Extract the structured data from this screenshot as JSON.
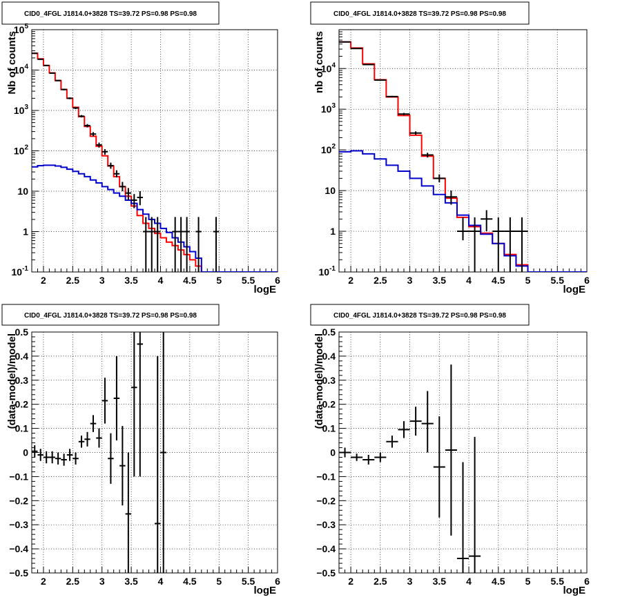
{
  "chart_data": [
    {
      "type": "line",
      "title": "CID0_4FGL J1814.0+3828 TS=39.72 PS=0.98 PS=0.98",
      "xlabel": "logE",
      "ylabel": "Nb of counts",
      "yscale": "log",
      "xlim": [
        1.8,
        6.0
      ],
      "ylim": [
        0.1,
        100000
      ],
      "grid": true,
      "xticks": [
        "2",
        "2.5",
        "3",
        "3.5",
        "4",
        "4.5",
        "5",
        "5.5",
        "6"
      ],
      "yticks": [
        {
          "value": 0.1,
          "base": "10",
          "exp": "-1"
        },
        {
          "value": 1,
          "label": "1"
        },
        {
          "value": 10,
          "label": "10"
        },
        {
          "value": 100,
          "base": "10",
          "exp": "2"
        },
        {
          "value": 1000,
          "base": "10",
          "exp": "3"
        },
        {
          "value": 10000,
          "base": "10",
          "exp": "4"
        },
        {
          "value": 100000,
          "base": "10",
          "exp": "5"
        }
      ],
      "binEdges": [
        1.8,
        1.9,
        2.0,
        2.1,
        2.2,
        2.3,
        2.4,
        2.5,
        2.6,
        2.7,
        2.8,
        2.9,
        3.0,
        3.1,
        3.2,
        3.3,
        3.4,
        3.5,
        3.6,
        3.7,
        3.8,
        3.9,
        4.0,
        4.1,
        4.2,
        4.3,
        4.4,
        4.5,
        4.6,
        4.7,
        4.8,
        4.9,
        5.0,
        5.1,
        5.2,
        5.3,
        5.4,
        5.5,
        5.6,
        5.7,
        5.8,
        5.9,
        6.0
      ],
      "series": [
        {
          "color": "#ff0000",
          "kind": "step",
          "values": [
            26000,
            19000,
            13000,
            8500,
            5500,
            3300,
            2000,
            1200,
            700,
            400,
            230,
            130,
            75,
            42,
            23,
            13,
            7.5,
            4.3,
            2.5,
            1.6,
            1.2,
            0.9,
            0.7,
            0.55,
            0.45,
            0.35,
            0.27,
            0.2,
            0.14,
            0.1,
            0.1,
            0.1,
            0.1,
            0.1,
            0.1,
            0.1,
            0.1,
            0.1,
            0.1,
            0.1,
            0.1,
            0.1
          ]
        },
        {
          "color": "#0000cc",
          "kind": "step",
          "values": [
            40,
            43,
            44,
            44,
            42,
            39,
            35,
            31,
            27,
            23,
            19,
            16,
            13,
            11,
            9,
            7.5,
            6,
            5,
            3.5,
            2.7,
            2,
            1.6,
            1.2,
            0.95,
            0.7,
            0.55,
            0.42,
            0.32,
            0.22,
            0.1,
            0.1,
            0.1,
            0.1,
            0.1,
            0.1,
            0.1,
            0.1,
            0.1,
            0.1,
            0.1,
            0.1,
            0.1
          ]
        }
      ],
      "points": [
        {
          "x": 1.85,
          "y": 26000,
          "lo": 25600,
          "hi": 26400
        },
        {
          "x": 1.95,
          "y": 18500,
          "lo": 18150,
          "hi": 18850
        },
        {
          "x": 2.05,
          "y": 13000,
          "lo": 12700,
          "hi": 13300
        },
        {
          "x": 2.15,
          "y": 8400,
          "lo": 8150,
          "hi": 8650
        },
        {
          "x": 2.25,
          "y": 5500,
          "lo": 5300,
          "hi": 5700
        },
        {
          "x": 2.35,
          "y": 3300,
          "lo": 3150,
          "hi": 3450
        },
        {
          "x": 2.45,
          "y": 2000,
          "lo": 1900,
          "hi": 2100
        },
        {
          "x": 2.55,
          "y": 1150,
          "lo": 1080,
          "hi": 1220
        },
        {
          "x": 2.65,
          "y": 720,
          "lo": 670,
          "hi": 770
        },
        {
          "x": 2.75,
          "y": 420,
          "lo": 380,
          "hi": 460
        },
        {
          "x": 2.85,
          "y": 260,
          "lo": 230,
          "hi": 290
        },
        {
          "x": 2.95,
          "y": 140,
          "lo": 120,
          "hi": 160
        },
        {
          "x": 3.05,
          "y": 95,
          "lo": 80,
          "hi": 110
        },
        {
          "x": 3.15,
          "y": 43,
          "lo": 36,
          "hi": 51
        },
        {
          "x": 3.25,
          "y": 27,
          "lo": 22,
          "hi": 33
        },
        {
          "x": 3.35,
          "y": 13,
          "lo": 10,
          "hi": 17
        },
        {
          "x": 3.45,
          "y": 9,
          "lo": 6,
          "hi": 12
        },
        {
          "x": 3.55,
          "y": 6,
          "lo": 3.8,
          "hi": 8.5
        },
        {
          "x": 3.65,
          "y": 7,
          "lo": 4.5,
          "hi": 10
        },
        {
          "x": 3.75,
          "y": 1,
          "lo": 0.1,
          "hi": 2.3
        },
        {
          "x": 3.85,
          "y": 1,
          "lo": 0.1,
          "hi": 2.3
        },
        {
          "x": 3.95,
          "y": 1,
          "lo": 0.1,
          "hi": 2.3
        },
        {
          "x": 4.25,
          "y": 1,
          "lo": 0.1,
          "hi": 2.3
        },
        {
          "x": 4.35,
          "y": 1,
          "lo": 0.1,
          "hi": 2.3
        },
        {
          "x": 4.45,
          "y": 1,
          "lo": 0.1,
          "hi": 2.3
        },
        {
          "x": 4.65,
          "y": 1,
          "lo": 0.1,
          "hi": 2.3
        },
        {
          "x": 4.95,
          "y": 1,
          "lo": 0.1,
          "hi": 2.3
        }
      ]
    },
    {
      "type": "line",
      "title": "CID0_4FGL J1814.0+3828 TS=39.72 PS=0.98 PS=0.98",
      "xlabel": "logE",
      "ylabel": "nb of counts",
      "yscale": "log",
      "xlim": [
        1.8,
        6.0
      ],
      "ylim": [
        0.1,
        90000
      ],
      "grid": true,
      "xticks": [
        "2",
        "2.5",
        "3",
        "3.5",
        "4",
        "4.5",
        "5",
        "5.5",
        "6"
      ],
      "yticks": [
        {
          "value": 0.1,
          "base": "10",
          "exp": "-1"
        },
        {
          "value": 1,
          "label": "1"
        },
        {
          "value": 10,
          "label": "10"
        },
        {
          "value": 100,
          "base": "10",
          "exp": "2"
        },
        {
          "value": 1000,
          "base": "10",
          "exp": "3"
        },
        {
          "value": 10000,
          "base": "10",
          "exp": "4"
        }
      ],
      "binEdges": [
        1.8,
        2.0,
        2.2,
        2.4,
        2.6,
        2.8,
        3.0,
        3.2,
        3.4,
        3.6,
        3.8,
        4.0,
        4.2,
        4.4,
        4.6,
        4.8,
        5.0,
        5.2,
        5.4,
        5.6,
        5.8,
        6.0
      ],
      "series": [
        {
          "color": "#ff0000",
          "kind": "step",
          "values": [
            45000,
            32000,
            13000,
            5300,
            2000,
            700,
            230,
            70,
            20,
            6.5,
            2.2,
            1.3,
            0.9,
            0.5,
            0.27,
            0.15,
            0.1,
            0.1,
            0.1,
            0.1,
            0.1
          ]
        },
        {
          "color": "#0000cc",
          "kind": "step",
          "values": [
            90,
            95,
            80,
            60,
            42,
            30,
            20,
            13,
            8,
            5,
            2.5,
            1.4,
            0.85,
            0.5,
            0.25,
            0.14,
            0.1,
            0.1,
            0.1,
            0.1,
            0.1
          ]
        }
      ],
      "points": [
        {
          "x": 1.9,
          "y": 45000,
          "lo": 44500,
          "hi": 45500
        },
        {
          "x": 2.1,
          "y": 31000,
          "lo": 30600,
          "hi": 31400
        },
        {
          "x": 2.3,
          "y": 12500,
          "lo": 12300,
          "hi": 12700
        },
        {
          "x": 2.5,
          "y": 5200,
          "lo": 5050,
          "hi": 5350
        },
        {
          "x": 2.7,
          "y": 2050,
          "lo": 1960,
          "hi": 2140
        },
        {
          "x": 2.9,
          "y": 760,
          "lo": 710,
          "hi": 810
        },
        {
          "x": 3.1,
          "y": 260,
          "lo": 235,
          "hi": 285
        },
        {
          "x": 3.3,
          "y": 75,
          "lo": 65,
          "hi": 85
        },
        {
          "x": 3.5,
          "y": 20,
          "lo": 16,
          "hi": 25
        },
        {
          "x": 3.7,
          "y": 7,
          "lo": 4.5,
          "hi": 10
        },
        {
          "x": 3.9,
          "y": 1,
          "lo": 0.6,
          "hi": 2.2
        },
        {
          "x": 4.1,
          "y": 1,
          "lo": 0.1,
          "hi": 2.2
        },
        {
          "x": 4.3,
          "y": 2,
          "lo": 1,
          "hi": 3.3
        },
        {
          "x": 4.5,
          "y": 1,
          "lo": 0.1,
          "hi": 2.2
        },
        {
          "x": 4.7,
          "y": 1,
          "lo": 0.1,
          "hi": 2.2
        },
        {
          "x": 4.9,
          "y": 1,
          "lo": 0.1,
          "hi": 2.2
        }
      ]
    },
    {
      "type": "scatter",
      "title": "CID0_4FGL J1814.0+3828 TS=39.72 PS=0.98 PS=0.98",
      "xlabel": "logE",
      "ylabel": "(data-model)/model",
      "xlim": [
        1.8,
        6.0
      ],
      "ylim": [
        -0.5,
        0.5
      ],
      "grid": true,
      "xticks": [
        "2",
        "2.5",
        "3",
        "3.5",
        "4",
        "4.5",
        "5",
        "5.5",
        "6"
      ],
      "yticks": [
        "−0.5",
        "−0.4",
        "−0.3",
        "−0.2",
        "−0.1",
        "0",
        "0.1",
        "0.2",
        "0.3",
        "0.4",
        "0.5"
      ],
      "halfwidth": 0.05,
      "points": [
        {
          "x": 1.85,
          "y": 0.005,
          "lo": -0.02,
          "hi": 0.03
        },
        {
          "x": 1.95,
          "y": -0.01,
          "lo": -0.035,
          "hi": 0.015
        },
        {
          "x": 2.05,
          "y": -0.02,
          "lo": -0.045,
          "hi": 0.005
        },
        {
          "x": 2.15,
          "y": -0.02,
          "lo": -0.045,
          "hi": 0.005
        },
        {
          "x": 2.25,
          "y": -0.025,
          "lo": -0.05,
          "hi": 0.0
        },
        {
          "x": 2.35,
          "y": -0.03,
          "lo": -0.055,
          "hi": -0.005
        },
        {
          "x": 2.45,
          "y": -0.01,
          "lo": -0.035,
          "hi": 0.015
        },
        {
          "x": 2.55,
          "y": -0.025,
          "lo": -0.05,
          "hi": 0.0
        },
        {
          "x": 2.65,
          "y": 0.045,
          "lo": 0.02,
          "hi": 0.07
        },
        {
          "x": 2.75,
          "y": 0.055,
          "lo": 0.025,
          "hi": 0.085
        },
        {
          "x": 2.85,
          "y": 0.12,
          "lo": 0.085,
          "hi": 0.155
        },
        {
          "x": 2.95,
          "y": 0.06,
          "lo": 0.02,
          "hi": 0.1
        },
        {
          "x": 3.05,
          "y": 0.215,
          "lo": 0.12,
          "hi": 0.31
        },
        {
          "x": 3.15,
          "y": -0.025,
          "lo": -0.13,
          "hi": 0.08
        },
        {
          "x": 3.25,
          "y": 0.225,
          "lo": 0.05,
          "hi": 0.4
        },
        {
          "x": 3.35,
          "y": -0.055,
          "lo": -0.22,
          "hi": 0.11
        },
        {
          "x": 3.45,
          "y": -0.255,
          "lo": -0.5,
          "hi": 0.0
        },
        {
          "x": 3.55,
          "y": 0.27,
          "lo": -0.1,
          "hi": 0.5
        },
        {
          "x": 3.65,
          "y": 0.45,
          "lo": -0.1,
          "hi": 0.5
        },
        {
          "x": 3.95,
          "y": -0.295,
          "lo": -0.5,
          "hi": 0.4
        },
        {
          "x": 4.05,
          "y": 0.0,
          "lo": -0.5,
          "hi": 0.5
        }
      ]
    },
    {
      "type": "scatter",
      "title": "CID0_4FGL J1814.0+3828 TS=39.72 PS=0.98 PS=0.98",
      "xlabel": "logE",
      "ylabel": "(data-model)/model",
      "xlim": [
        1.8,
        6.0
      ],
      "ylim": [
        -0.5,
        0.5
      ],
      "grid": true,
      "xticks": [
        "2",
        "2.5",
        "3",
        "3.5",
        "4",
        "4.5",
        "5",
        "5.5",
        "6"
      ],
      "yticks": [
        "−0.5",
        "−0.4",
        "−0.3",
        "−0.2",
        "−0.1",
        "0",
        "0.1",
        "0.2",
        "0.3",
        "0.4",
        "0.5"
      ],
      "halfwidth": 0.1,
      "points": [
        {
          "x": 1.9,
          "y": 0.0,
          "lo": -0.02,
          "hi": 0.02
        },
        {
          "x": 2.1,
          "y": -0.02,
          "lo": -0.035,
          "hi": -0.005
        },
        {
          "x": 2.3,
          "y": -0.03,
          "lo": -0.05,
          "hi": -0.01
        },
        {
          "x": 2.5,
          "y": -0.02,
          "lo": -0.04,
          "hi": 0.0
        },
        {
          "x": 2.7,
          "y": 0.045,
          "lo": 0.02,
          "hi": 0.07
        },
        {
          "x": 2.9,
          "y": 0.095,
          "lo": 0.06,
          "hi": 0.13
        },
        {
          "x": 3.1,
          "y": 0.13,
          "lo": 0.07,
          "hi": 0.19
        },
        {
          "x": 3.3,
          "y": 0.12,
          "lo": 0.0,
          "hi": 0.255
        },
        {
          "x": 3.5,
          "y": -0.06,
          "lo": -0.27,
          "hi": 0.15
        },
        {
          "x": 3.7,
          "y": 0.01,
          "lo": -0.345,
          "hi": 0.365
        },
        {
          "x": 3.9,
          "y": -0.44,
          "lo": -0.5,
          "hi": -0.04
        },
        {
          "x": 4.1,
          "y": -0.43,
          "lo": -0.5,
          "hi": 0.065
        }
      ]
    }
  ]
}
